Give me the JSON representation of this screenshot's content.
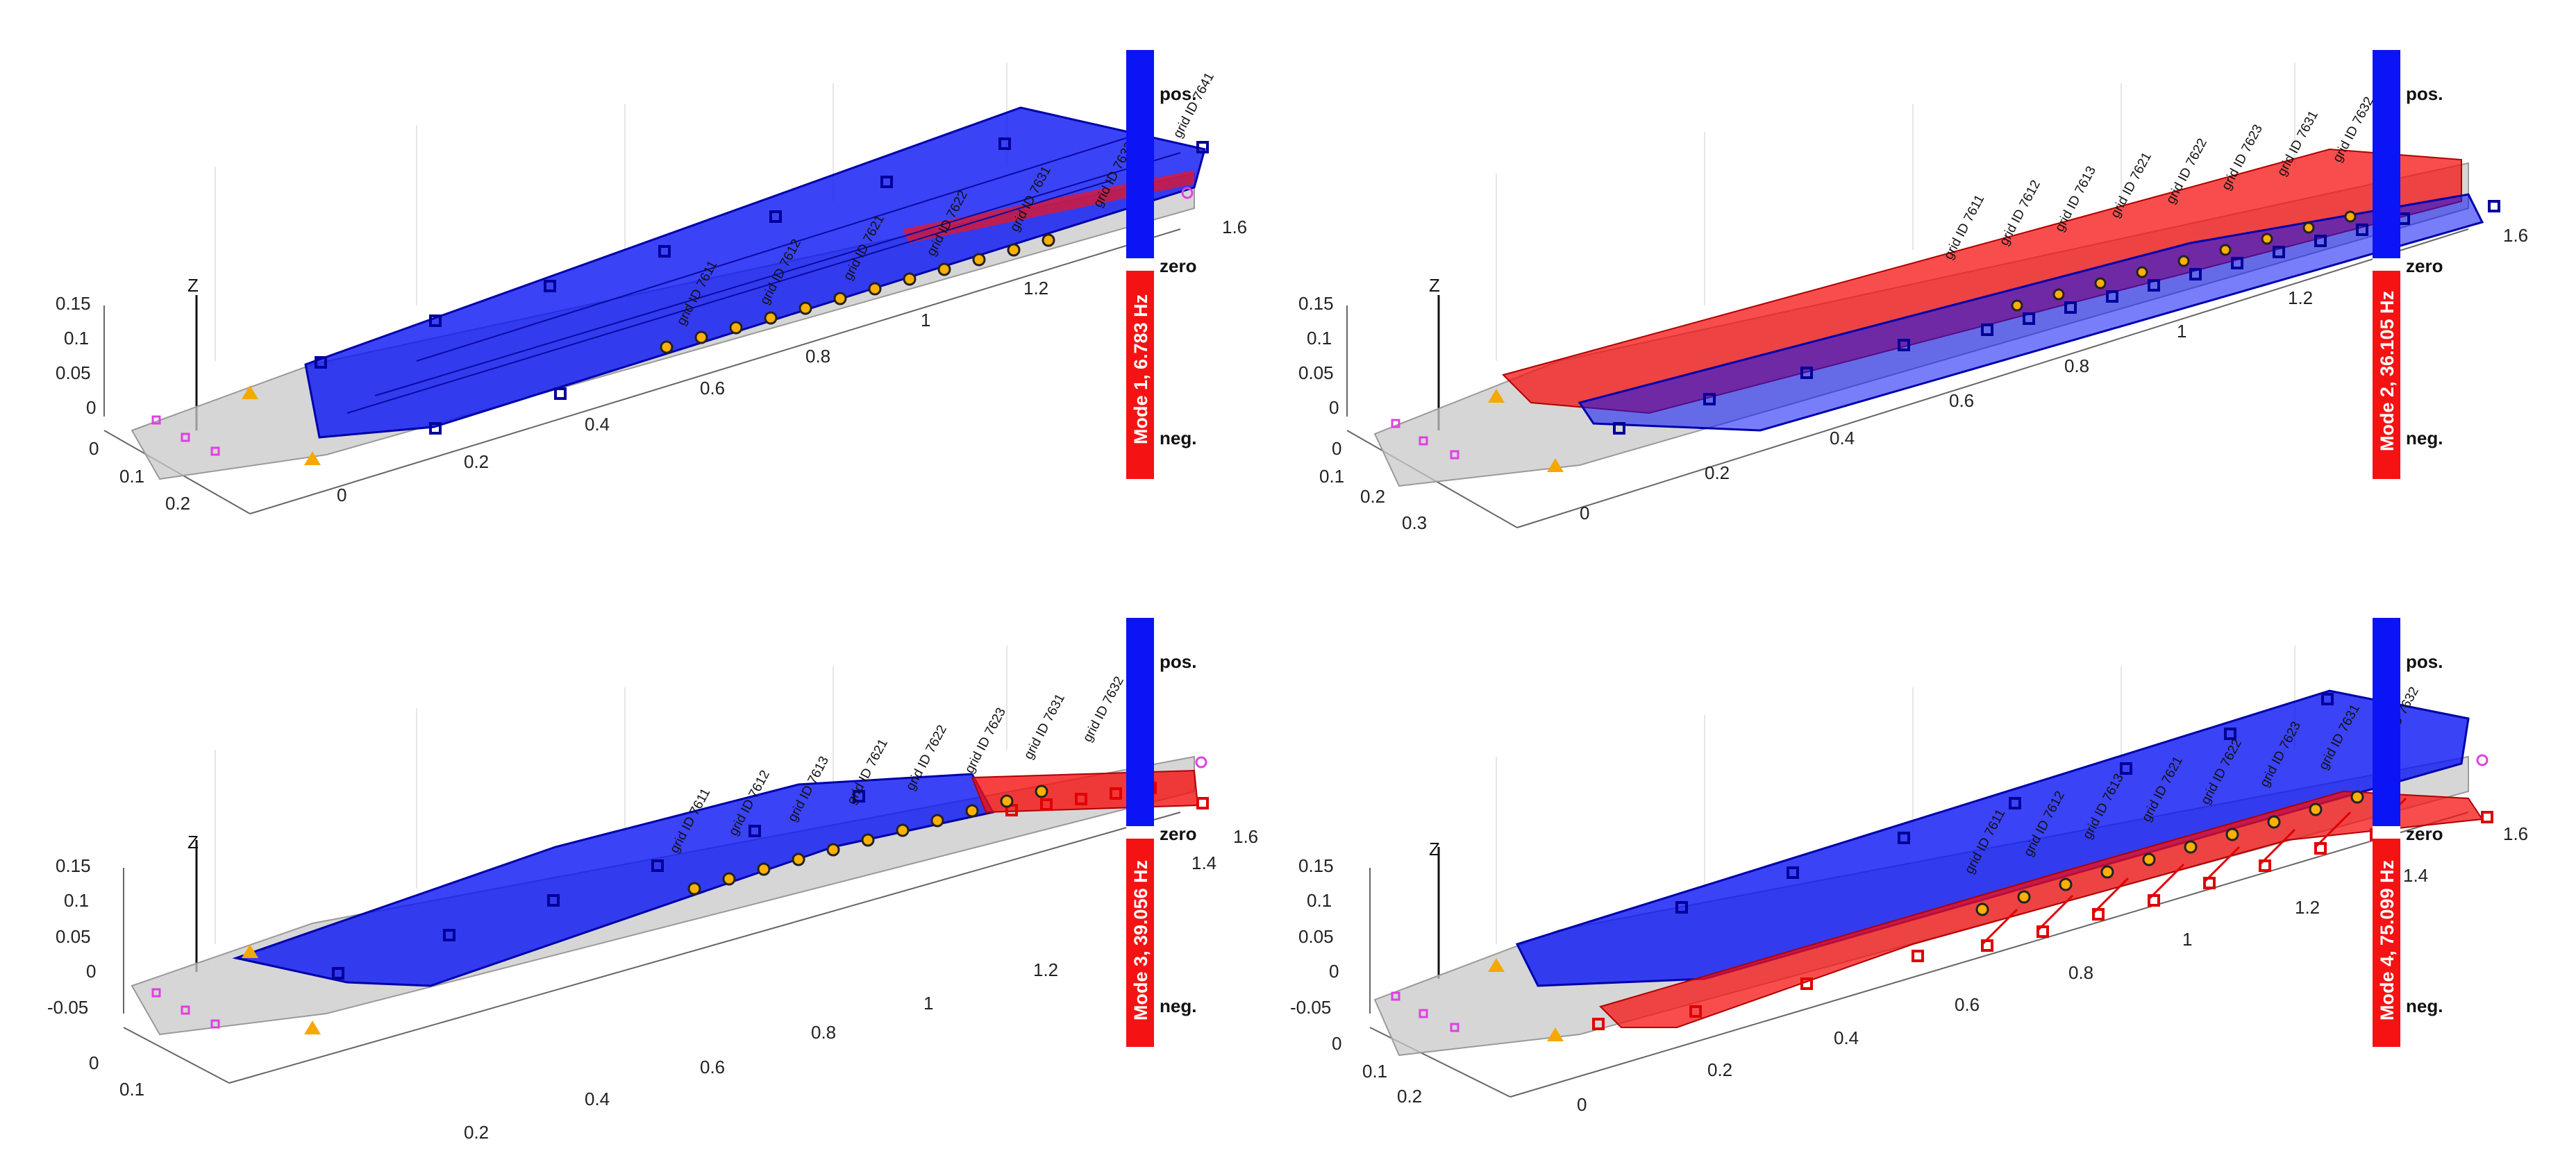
{
  "colors": {
    "positive": "#0a14f5",
    "negative": "#f51212",
    "zero": "#ffffff",
    "undeformed": "#b0b0b0",
    "marker_magenta": "#e040e0",
    "marker_orange": "#f5a800"
  },
  "colorbar": {
    "pos_label": "pos.",
    "zero_label": "zero",
    "neg_label": "neg."
  },
  "z_axis_label": "Z",
  "panels": [
    {
      "mode_label": "Mode 1,   6.783 Hz",
      "z_ticks": [
        "0.15",
        "0.1",
        "0.05",
        "0"
      ],
      "y_ticks": [
        "0",
        "0.1",
        "0.2"
      ],
      "x_ticks": [
        "0",
        "0.2",
        "0.4",
        "0.6",
        "0.8",
        "1",
        "1.2",
        "1.6"
      ],
      "grid_labels": [
        "grid ID 7611",
        "grid ID 7612",
        "grid ID 7621",
        "grid ID 7622",
        "grid ID 7631",
        "grid ID 7632",
        "grid ID 7641"
      ]
    },
    {
      "mode_label": "Mode 2,  36.105 Hz",
      "z_ticks": [
        "0.15",
        "0.1",
        "0.05",
        "0"
      ],
      "y_ticks": [
        "0",
        "0.1",
        "0.2",
        "0.3"
      ],
      "x_ticks": [
        "0",
        "0.2",
        "0.4",
        "0.6",
        "0.8",
        "1",
        "1.2",
        "1.6"
      ],
      "grid_labels": [
        "grid ID 7611",
        "grid ID 7612",
        "grid ID 7613",
        "grid ID 7621",
        "grid ID 7622",
        "grid ID 7623",
        "grid ID 7631",
        "grid ID 7632"
      ]
    },
    {
      "mode_label": "Mode 3,  39.056 Hz",
      "z_ticks": [
        "0.15",
        "0.1",
        "0.05",
        "0",
        "-0.05"
      ],
      "y_ticks": [
        "0",
        "0.1"
      ],
      "x_ticks": [
        "0.2",
        "0.4",
        "0.6",
        "0.8",
        "1",
        "1.2",
        "1.4",
        "1.6"
      ],
      "grid_labels": [
        "grid ID 7611",
        "grid ID 7612",
        "grid ID 7613",
        "grid ID 7621",
        "grid ID 7622",
        "grid ID 7623",
        "grid ID 7631",
        "grid ID 7632"
      ]
    },
    {
      "mode_label": "Mode 4,  75.099 Hz",
      "z_ticks": [
        "0.15",
        "0.1",
        "0.05",
        "0",
        "-0.05"
      ],
      "y_ticks": [
        "0",
        "0.1",
        "0.2"
      ],
      "x_ticks": [
        "0",
        "0.2",
        "0.4",
        "0.6",
        "0.8",
        "1",
        "1.2",
        "1.4",
        "1.6"
      ],
      "grid_labels": [
        "grid ID 7611",
        "grid ID 7612",
        "grid ID 7613",
        "grid ID 7621",
        "grid ID 7622",
        "grid ID 7623",
        "grid ID 7631",
        "grid ID 7632"
      ]
    }
  ]
}
